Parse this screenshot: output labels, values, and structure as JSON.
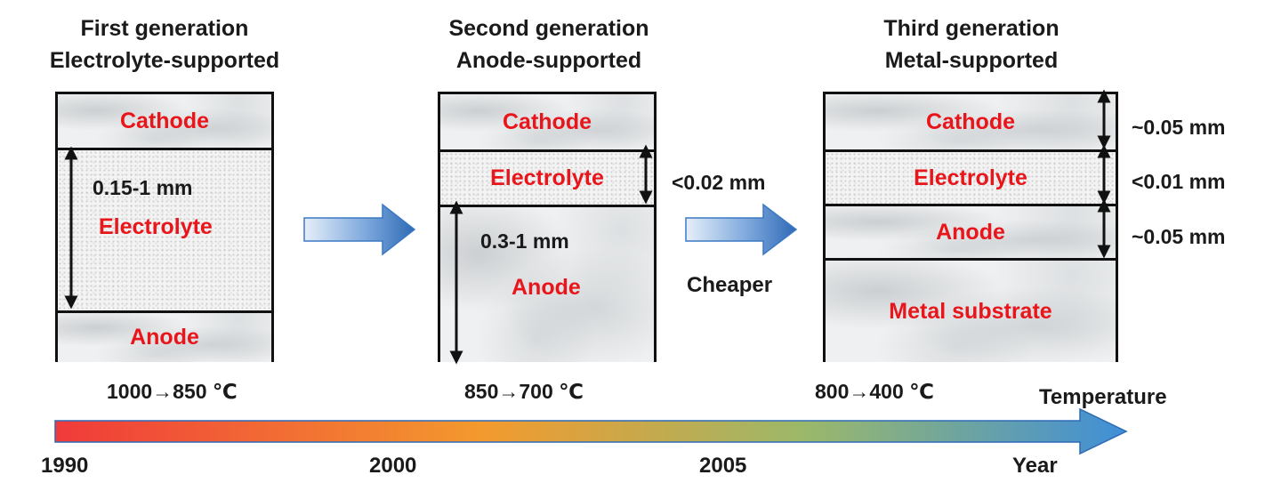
{
  "generations": [
    {
      "title_line1": "First generation",
      "title_line2": "Electrolyte-supported",
      "layers": [
        "Cathode",
        "Electrolyte",
        "Anode"
      ],
      "dimension": "0.15-1 mm",
      "temperature": "1000→850 ℃"
    },
    {
      "title_line1": "Second generation",
      "title_line2": "Anode-supported",
      "layers": [
        "Cathode",
        "Electrolyte",
        "Anode"
      ],
      "electrolyte_dimension": "<0.02 mm",
      "anode_dimension": "0.3-1 mm",
      "temperature": "850→700 ℃"
    },
    {
      "title_line1": "Third generation",
      "title_line2": "Metal-supported",
      "layers": [
        "Cathode",
        "Electrolyte",
        "Anode",
        "Metal substrate"
      ],
      "dimensions": [
        "~0.05 mm",
        "<0.01 mm",
        "~0.05 mm"
      ],
      "temperature": "800→400 ℃"
    }
  ],
  "transition_label": "Cheaper",
  "timeline": {
    "axis_label_top": "Temperature",
    "axis_label_bottom": "Year",
    "years": [
      "1990",
      "2000",
      "2005"
    ],
    "gradient_colors": [
      "#f03a3a",
      "#f39a2e",
      "#9bb86a",
      "#3f8fd8"
    ]
  },
  "colors": {
    "layer_label": "#e8151b",
    "arrow_blue": "#3b78c4",
    "border": "#111111"
  }
}
